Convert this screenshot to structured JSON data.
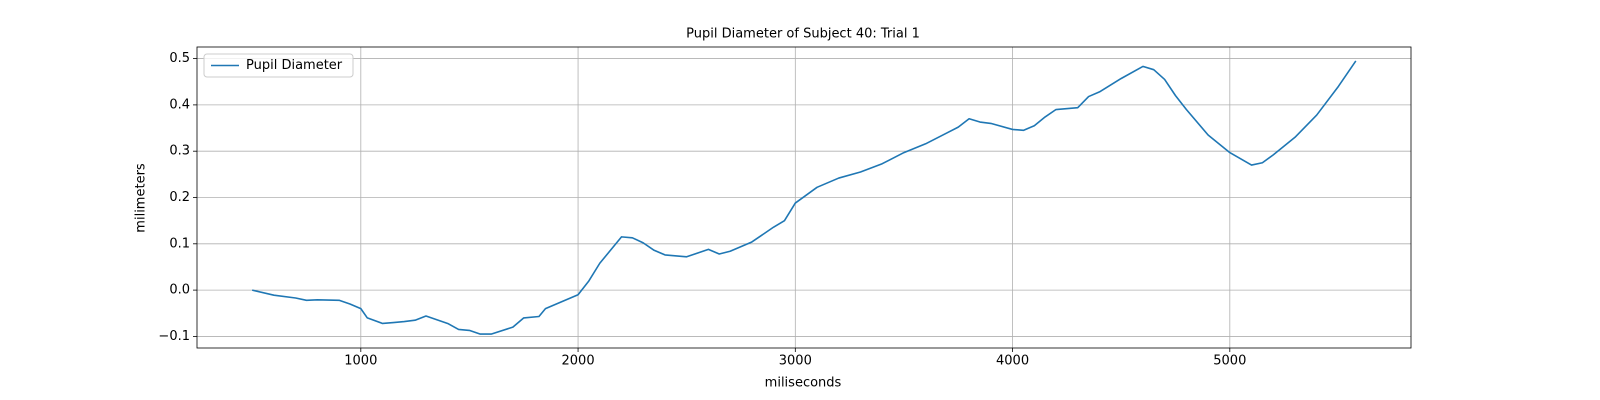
{
  "chart_data": {
    "type": "line",
    "title": "Pupil Diameter of Subject 40: Trial 1",
    "xlabel": "miliseconds",
    "ylabel": "milimeters",
    "x": [
      500,
      600,
      700,
      750,
      800,
      900,
      950,
      1000,
      1030,
      1100,
      1150,
      1200,
      1250,
      1300,
      1400,
      1450,
      1500,
      1550,
      1600,
      1700,
      1750,
      1820,
      1850,
      1900,
      2000,
      2050,
      2100,
      2200,
      2250,
      2300,
      2350,
      2400,
      2500,
      2600,
      2650,
      2700,
      2800,
      2900,
      2950,
      3000,
      3100,
      3200,
      3300,
      3400,
      3500,
      3600,
      3700,
      3750,
      3800,
      3850,
      3900,
      4000,
      4050,
      4100,
      4150,
      4200,
      4300,
      4350,
      4400,
      4500,
      4600,
      4650,
      4700,
      4750,
      4800,
      4900,
      5000,
      5100,
      5150,
      5200,
      5300,
      5400,
      5500,
      5580
    ],
    "series": [
      {
        "name": "Pupil Diameter",
        "color": "#1f77b4",
        "values": [
          0,
          -0.011,
          -0.017,
          -0.022,
          -0.021,
          -0.022,
          -0.03,
          -0.04,
          -0.06,
          -0.072,
          -0.07,
          -0.068,
          -0.065,
          -0.056,
          -0.072,
          -0.085,
          -0.087,
          -0.095,
          -0.095,
          -0.08,
          -0.06,
          -0.057,
          -0.04,
          -0.03,
          -0.01,
          0.02,
          0.058,
          0.115,
          0.113,
          0.102,
          0.086,
          0.076,
          0.072,
          0.088,
          0.078,
          0.084,
          0.104,
          0.136,
          0.15,
          0.188,
          0.222,
          0.242,
          0.255,
          0.273,
          0.297,
          0.316,
          0.34,
          0.352,
          0.37,
          0.363,
          0.36,
          0.347,
          0.345,
          0.355,
          0.374,
          0.39,
          0.394,
          0.418,
          0.428,
          0.457,
          0.483,
          0.476,
          0.455,
          0.42,
          0.39,
          0.335,
          0.297,
          0.27,
          0.275,
          0.292,
          0.33,
          0.378,
          0.44,
          0.495
        ]
      }
    ],
    "xlim": [
      246,
      5834
    ],
    "xticks": [
      1000,
      2000,
      3000,
      4000,
      5000
    ],
    "ylim": [
      -0.125,
      0.525
    ],
    "yticks": [
      {
        "value": -0.1,
        "label": "−0.1"
      },
      {
        "value": 0,
        "label": "0.0"
      },
      0.1,
      0.2,
      0.3,
      0.4,
      0.5
    ],
    "grid": true,
    "legend": "upper left"
  }
}
